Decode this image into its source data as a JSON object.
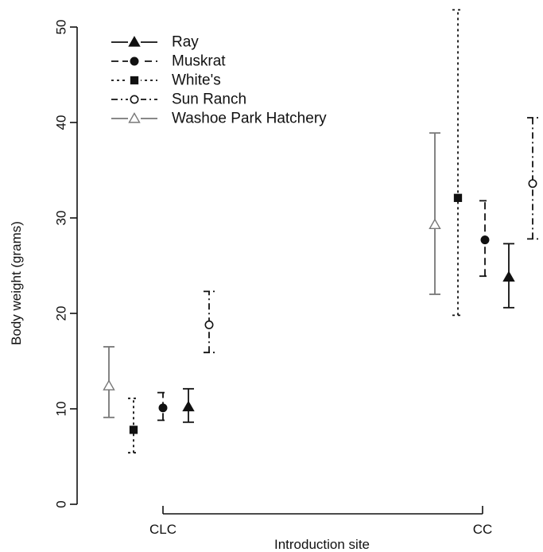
{
  "chart_data": {
    "type": "scatter",
    "xlabel": "Introduction site",
    "ylabel": "Body weight (grams)",
    "ylim": [
      0,
      50
    ],
    "yticks": [
      0,
      10,
      20,
      30,
      40,
      50
    ],
    "categories": [
      "CLC",
      "CC"
    ],
    "legend_position": "top-left",
    "grid": false,
    "series": [
      {
        "name": "Ray",
        "marker": "filled-triangle",
        "line_style": "solid",
        "color": "#111111",
        "points": [
          {
            "category": "CLC",
            "y": 10.2,
            "lower": 8.6,
            "upper": 12.1
          },
          {
            "category": "CC",
            "y": 23.8,
            "lower": 20.6,
            "upper": 27.3
          }
        ]
      },
      {
        "name": "Muskrat",
        "marker": "filled-circle",
        "line_style": "dashed",
        "color": "#111111",
        "points": [
          {
            "category": "CLC",
            "y": 10.1,
            "lower": 8.8,
            "upper": 11.7
          },
          {
            "category": "CC",
            "y": 27.7,
            "lower": 23.9,
            "upper": 31.8
          }
        ]
      },
      {
        "name": "White's",
        "marker": "filled-square",
        "line_style": "dotted",
        "color": "#111111",
        "points": [
          {
            "category": "CLC",
            "y": 7.8,
            "lower": 5.4,
            "upper": 11.1
          },
          {
            "category": "CC",
            "y": 32.1,
            "lower": 19.8,
            "upper": 51.8
          }
        ]
      },
      {
        "name": "Sun Ranch",
        "marker": "open-circle",
        "line_style": "dash-dot",
        "color": "#111111",
        "points": [
          {
            "category": "CLC",
            "y": 18.8,
            "lower": 15.9,
            "upper": 22.3
          },
          {
            "category": "CC",
            "y": 33.6,
            "lower": 27.8,
            "upper": 40.5
          }
        ]
      },
      {
        "name": "Washoe Park Hatchery",
        "marker": "open-triangle",
        "line_style": "solid",
        "color": "#777777",
        "points": [
          {
            "category": "CLC",
            "y": 12.4,
            "lower": 9.1,
            "upper": 16.5
          },
          {
            "category": "CC",
            "y": 29.3,
            "lower": 22.0,
            "upper": 38.9
          }
        ]
      }
    ]
  }
}
